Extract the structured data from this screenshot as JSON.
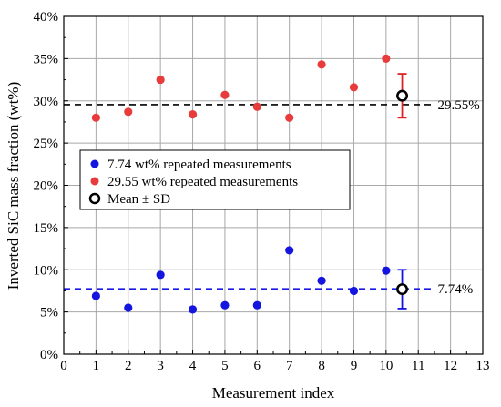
{
  "chart_data": {
    "type": "scatter",
    "xlabel": "Measurement index",
    "ylabel": "Inverted SiC mass fraction (wt%)",
    "xlim": [
      0,
      13
    ],
    "ylim": [
      0,
      40
    ],
    "x_ticks": [
      "0",
      "1",
      "2",
      "3",
      "4",
      "5",
      "6",
      "7",
      "8",
      "9",
      "10",
      "11",
      "12",
      "13"
    ],
    "y_ticks": [
      "0%",
      "5%",
      "10%",
      "15%",
      "20%",
      "25%",
      "30%",
      "35%",
      "40%"
    ],
    "grid": true,
    "legend_position": "center-left",
    "series": [
      {
        "name": "7.74 wt% repeated measurements",
        "color": "#1515e0",
        "x": [
          1,
          2,
          3,
          4,
          5,
          6,
          7,
          8,
          9,
          10
        ],
        "y": [
          6.9,
          5.5,
          9.4,
          5.3,
          5.8,
          5.8,
          12.3,
          8.7,
          7.5,
          9.9
        ]
      },
      {
        "name": "29.55 wt% repeated measurements",
        "color": "#e83c3c",
        "x": [
          1,
          2,
          3,
          4,
          5,
          6,
          7,
          8,
          9,
          10
        ],
        "y": [
          28.0,
          28.7,
          32.5,
          28.4,
          30.7,
          29.3,
          28.0,
          34.3,
          31.6,
          35.0
        ]
      }
    ],
    "mean_sd": {
      "name": "Mean ± SD",
      "points": [
        {
          "x": 10.5,
          "mean": 7.7,
          "sd": 2.3,
          "color": "#1515e0"
        },
        {
          "x": 10.5,
          "mean": 30.6,
          "sd": 2.6,
          "color": "#e02020"
        }
      ]
    },
    "reference_lines": [
      {
        "y": 7.74,
        "label": "7.74%",
        "color": "#1a1ae6"
      },
      {
        "y": 29.55,
        "label": "29.55%",
        "color": "#000000"
      }
    ]
  }
}
